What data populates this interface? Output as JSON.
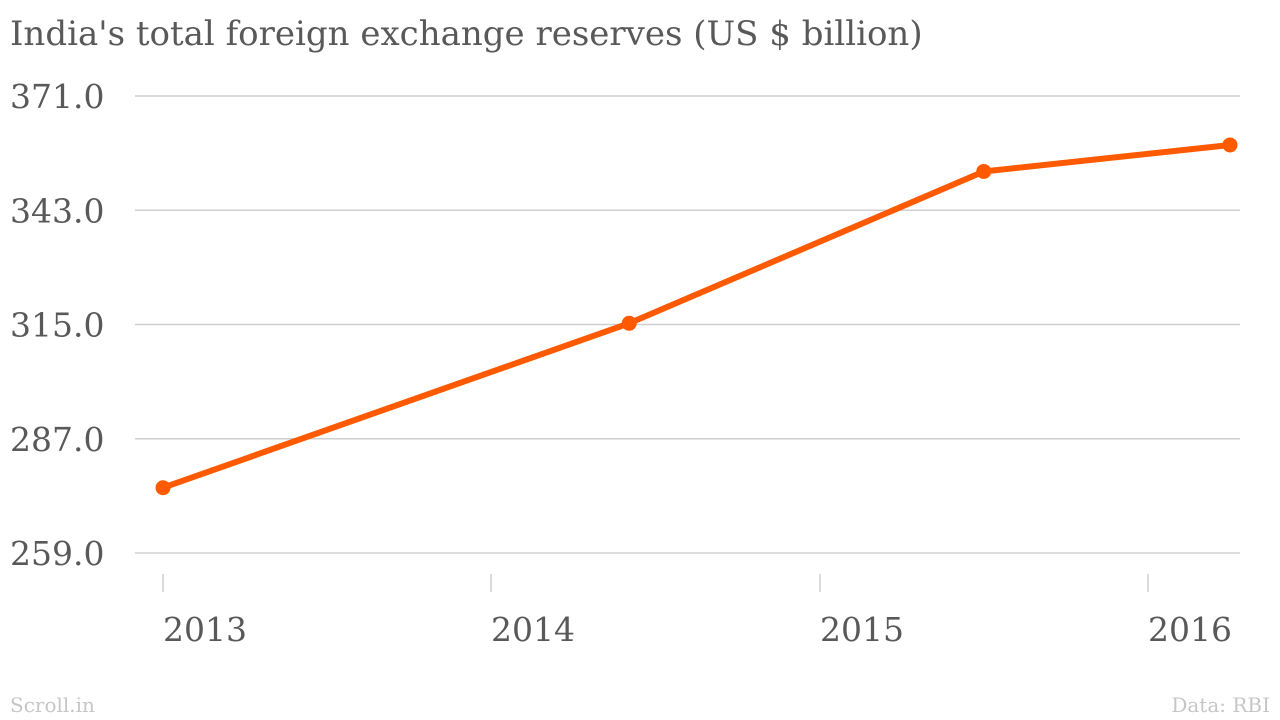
{
  "chart_data": {
    "type": "line",
    "title": "India's total foreign exchange reserves (US $ billion)",
    "xlabel": "",
    "ylabel": "",
    "x_ticks": [
      "2013",
      "2014",
      "2015",
      "2016"
    ],
    "x_tick_values": [
      2013,
      2014,
      2015,
      2016
    ],
    "y_ticks": [
      "371.0",
      "343.0",
      "315.0",
      "287.0",
      "259.0"
    ],
    "y_tick_values": [
      371,
      343,
      315,
      287,
      259
    ],
    "xlim": [
      2013,
      2016.25
    ],
    "ylim": [
      259,
      371
    ],
    "grid": true,
    "legend": "none",
    "series": [
      {
        "color": "#ff5a00",
        "points": [
          {
            "x": 2013.0,
            "y": 275.0
          },
          {
            "x": 2014.42,
            "y": 315.3
          },
          {
            "x": 2015.5,
            "y": 352.5
          },
          {
            "x": 2016.25,
            "y": 359.0
          }
        ]
      }
    ]
  },
  "footer": {
    "source_brand": "Scroll.in",
    "data_credit": "Data: RBI"
  }
}
